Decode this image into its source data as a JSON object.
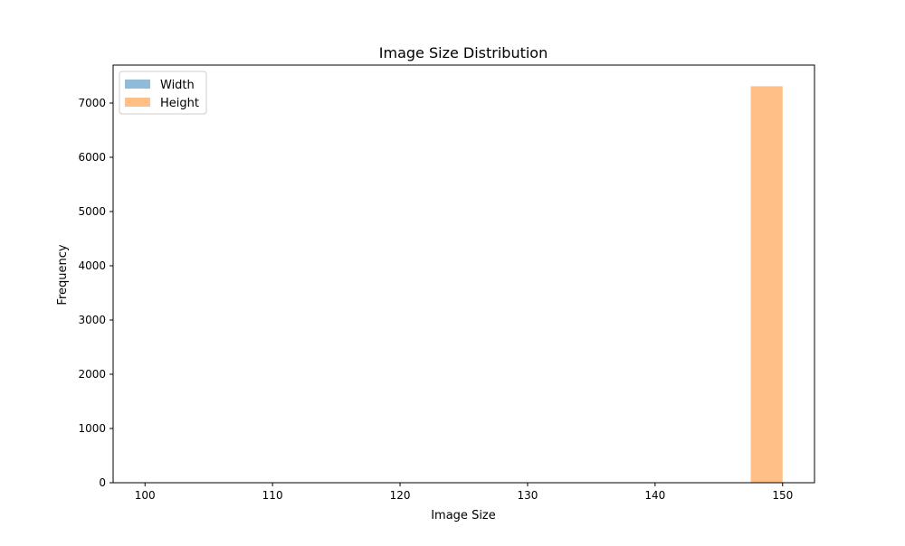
{
  "chart_data": {
    "type": "bar",
    "title": "Image Size Distribution",
    "xlabel": "Image Size",
    "ylabel": "Frequency",
    "xlim": [
      97.5,
      152.5
    ],
    "ylim": [
      0,
      7700
    ],
    "xticks": [
      100,
      110,
      120,
      130,
      140,
      150
    ],
    "yticks": [
      0,
      1000,
      2000,
      3000,
      4000,
      5000,
      6000,
      7000
    ],
    "legend_position": "top-left",
    "series": [
      {
        "name": "Width",
        "color": "#1f77b4",
        "opacity": 0.5,
        "bins": [
          {
            "x0": 147.5,
            "x1": 150.0,
            "value": 0
          }
        ]
      },
      {
        "name": "Height",
        "color": "#ff7f0e",
        "opacity": 0.5,
        "bins": [
          {
            "x0": 147.5,
            "x1": 150.0,
            "value": 7310
          }
        ]
      }
    ]
  }
}
